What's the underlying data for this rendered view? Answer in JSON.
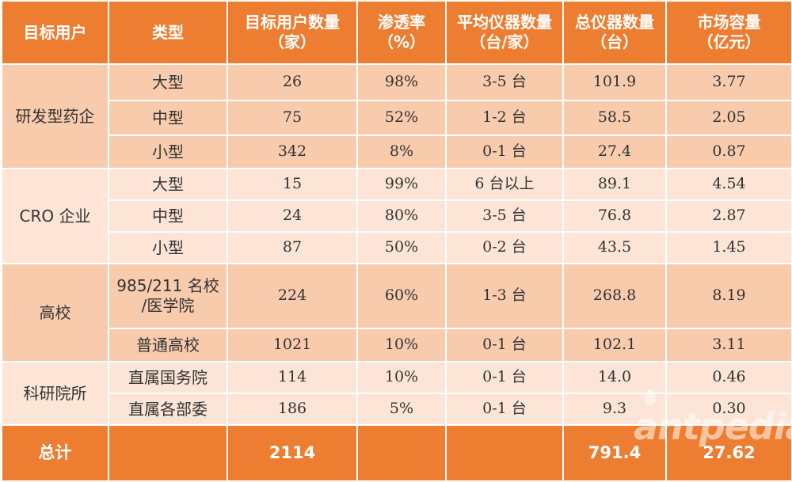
{
  "header": {
    "col1": "目标用户",
    "col2": "类型",
    "col3": [
      "目标用户数量",
      "（家）"
    ],
    "col4": [
      "渗透率",
      "（%）"
    ],
    "col5": [
      "平均仪器数量",
      "（台/家）"
    ],
    "col6": [
      "总仪器数量",
      "（台）"
    ],
    "col7": [
      "市场容量",
      "（亿元）"
    ]
  },
  "groups": [
    {
      "name": "研发型药企",
      "rows": [
        {
          "type": "大型",
          "users": "26",
          "rate": "98%",
          "avg": "3-5 台",
          "total": "101.9",
          "market": "3.77"
        },
        {
          "type": "中型",
          "users": "75",
          "rate": "52%",
          "avg": "1-2 台",
          "total": "58.5",
          "market": "2.05"
        },
        {
          "type": "小型",
          "users": "342",
          "rate": "8%",
          "avg": "0-1 台",
          "total": "27.4",
          "market": "0.87"
        }
      ]
    },
    {
      "name": "CRO 企业",
      "rows": [
        {
          "type": "大型",
          "users": "15",
          "rate": "99%",
          "avg": "6 台以上",
          "total": "89.1",
          "market": "4.54"
        },
        {
          "type": "中型",
          "users": "24",
          "rate": "80%",
          "avg": "3-5 台",
          "total": "76.8",
          "market": "2.87"
        },
        {
          "type": "小型",
          "users": "87",
          "rate": "50%",
          "avg": "0-2 台",
          "total": "43.5",
          "market": "1.45"
        }
      ]
    },
    {
      "name": "高校",
      "rows": [
        {
          "type_lines": [
            "985/211 名校",
            "/医学院"
          ],
          "users": "224",
          "rate": "60%",
          "avg": "1-3 台",
          "total": "268.8",
          "market": "8.19"
        },
        {
          "type": "普通高校",
          "users": "1021",
          "rate": "10%",
          "avg": "0-1 台",
          "total": "102.1",
          "market": "3.11"
        }
      ]
    },
    {
      "name": "科研院所",
      "rows": [
        {
          "type": "直属国务院",
          "users": "114",
          "rate": "10%",
          "avg": "0-1 台",
          "total": "14.0",
          "market": "0.46"
        },
        {
          "type": "直属各部委",
          "users": "186",
          "rate": "5%",
          "avg": "0-1 台",
          "total": "9.3",
          "market": "0.30"
        }
      ]
    }
  ],
  "total": {
    "label": "总计",
    "users": "2114",
    "total": "791.4",
    "market": "27.62"
  },
  "watermark": "antpedia",
  "colors": {
    "header": "#ed7d31",
    "row_dark": "#f8cbad",
    "row_light": "#fce5d6"
  }
}
